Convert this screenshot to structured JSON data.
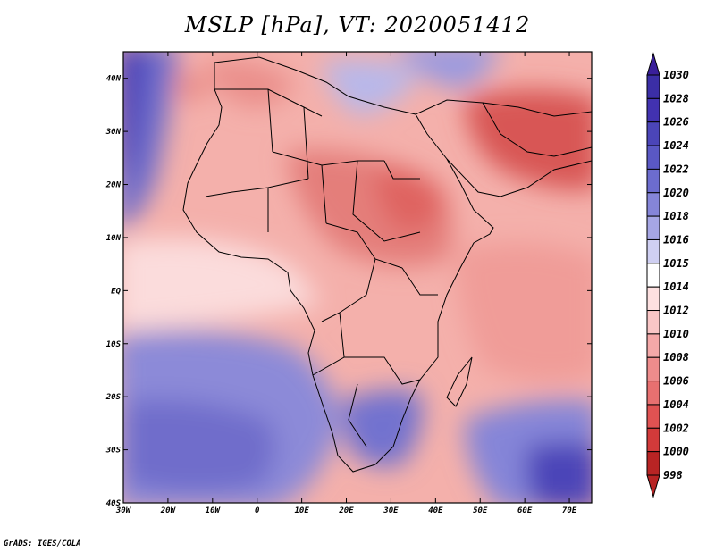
{
  "title": "MSLP [hPa], VT: 2020051412",
  "credit": "GrADS: IGES/COLA",
  "map": {
    "variable": "MSLP",
    "units": "hPa",
    "valid_time": "2020051412",
    "lon_range": [
      -30,
      75
    ],
    "lat_range": [
      -40,
      45
    ],
    "lon_ticks": [
      "30W",
      "20W",
      "10W",
      "0",
      "10E",
      "20E",
      "30E",
      "40E",
      "50E",
      "60E",
      "70E"
    ],
    "lat_ticks": [
      "40N",
      "30N",
      "20N",
      "10N",
      "EQ",
      "10S",
      "20S",
      "30S",
      "40S"
    ]
  },
  "colorbar": {
    "levels": [
      "1030",
      "1028",
      "1026",
      "1024",
      "1022",
      "1020",
      "1018",
      "1016",
      "1015",
      "1014",
      "1012",
      "1010",
      "1008",
      "1006",
      "1004",
      "1002",
      "1000",
      "998"
    ],
    "colors": [
      "#3a1f9a",
      "#3b2ea6",
      "#4232b0",
      "#4b45b8",
      "#5a58c4",
      "#6c6cce",
      "#8585d8",
      "#a6a6e4",
      "#cfcff2",
      "#ffffff",
      "#fde0e0",
      "#f9c6c6",
      "#f4a8a8",
      "#ee8c8c",
      "#e87070",
      "#e05252",
      "#d23a3a",
      "#b82424"
    ]
  }
}
